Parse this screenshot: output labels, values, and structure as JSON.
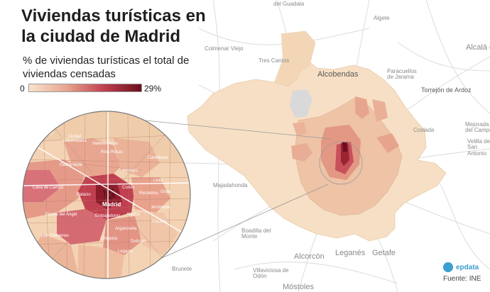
{
  "title": "Viviendas turísticas en la ciudad de Madrid",
  "subtitle": "% de viviendas turísticas el total de viviendas censadas",
  "legend": {
    "min_label": "0",
    "max_label": "29%",
    "min_value": 0,
    "max_value": 29,
    "unit": "%",
    "color_low": "#f7e3cf",
    "color_high": "#6b0f1e"
  },
  "colors": {
    "low": "#f5ddc2",
    "mid": "#e8a58e",
    "high": "#c0404f",
    "peak": "#7a1322",
    "road": "#d9d9d9",
    "water": "#d4d4d4",
    "brand": "#3b9fd0"
  },
  "places": [
    "Algete",
    "Alcalá de",
    "Colmenar Viejo",
    "Tres Cantos",
    "Alcobendas",
    "Paracuellos de Jarama",
    "Torrejón de Ardoz",
    "Coslada",
    "Mejorada del Campo",
    "Velilla de San Antonio",
    "Majadahonda",
    "Boadilla del Monte",
    "Alcorcón",
    "Leganés",
    "Getafe",
    "Villaviciosa de Odón",
    "Móstoles",
    "Brunete",
    "del Guadala"
  ],
  "inset_labels": {
    "center": "Madrid",
    "zones": [
      "Ciudad Universitaria",
      "Vallehermoso",
      "Ríos Rosas",
      "Gaztambide",
      "Almagro",
      "Castellana",
      "Recoletos",
      "Lista",
      "Goya",
      "Jerónimos",
      "Palacio",
      "Embajadores",
      "Cortes",
      "Atocha",
      "Casa de Campo",
      "Chopera",
      "Legazpi",
      "Los Cármenes",
      "Puerta del Ángel",
      "Arganzuela",
      "Pacífico",
      "Delicias"
    ]
  },
  "brand": {
    "name": "epdata",
    "icon": "epdata-logo-icon"
  },
  "source": "Fuente: INE"
}
